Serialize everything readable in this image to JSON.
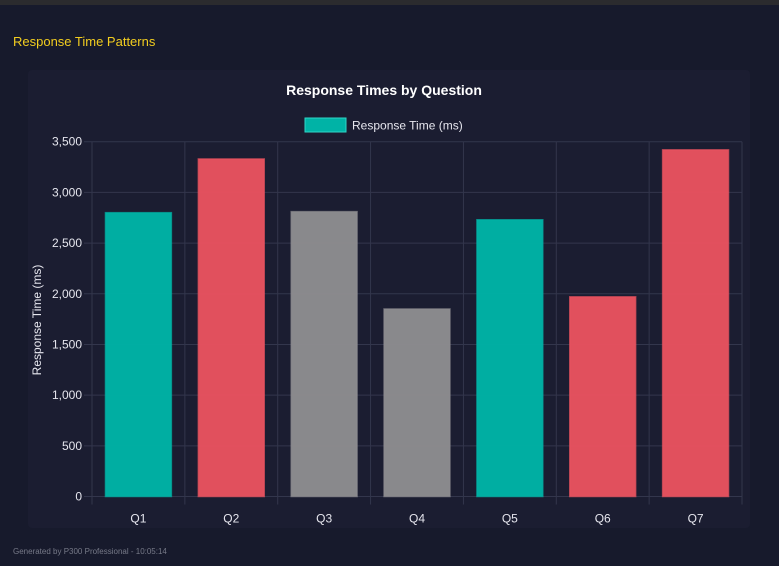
{
  "section_title": "Response Time Patterns",
  "footer": "Generated by P300 Professional - 10:05:14",
  "colors": {
    "teal": "#00b3a6",
    "red": "#e8525f",
    "gray": "#8d8c90",
    "title": "#f2cd1f"
  },
  "chart_data": {
    "type": "bar",
    "title": "Response Times by Question",
    "legend": [
      {
        "label": "Response Time (ms)",
        "color": "#00b3a6"
      }
    ],
    "legend_position": "top",
    "xlabel": "",
    "ylabel": "Response Time (ms)",
    "ylim": [
      0,
      3500
    ],
    "yticks": [
      0,
      500,
      1000,
      1500,
      2000,
      2500,
      3000,
      3500
    ],
    "ytick_labels": [
      "0",
      "500",
      "1,000",
      "1,500",
      "2,000",
      "2,500",
      "3,000",
      "3,500"
    ],
    "grid": true,
    "categories": [
      "Q1",
      "Q2",
      "Q3",
      "Q4",
      "Q5",
      "Q6",
      "Q7"
    ],
    "values": [
      2800,
      3330,
      2810,
      1850,
      2730,
      1970,
      3420
    ],
    "bar_colors": [
      "#00b3a6",
      "#e8525f",
      "#8d8c90",
      "#8d8c90",
      "#00b3a6",
      "#e8525f",
      "#e8525f"
    ]
  }
}
